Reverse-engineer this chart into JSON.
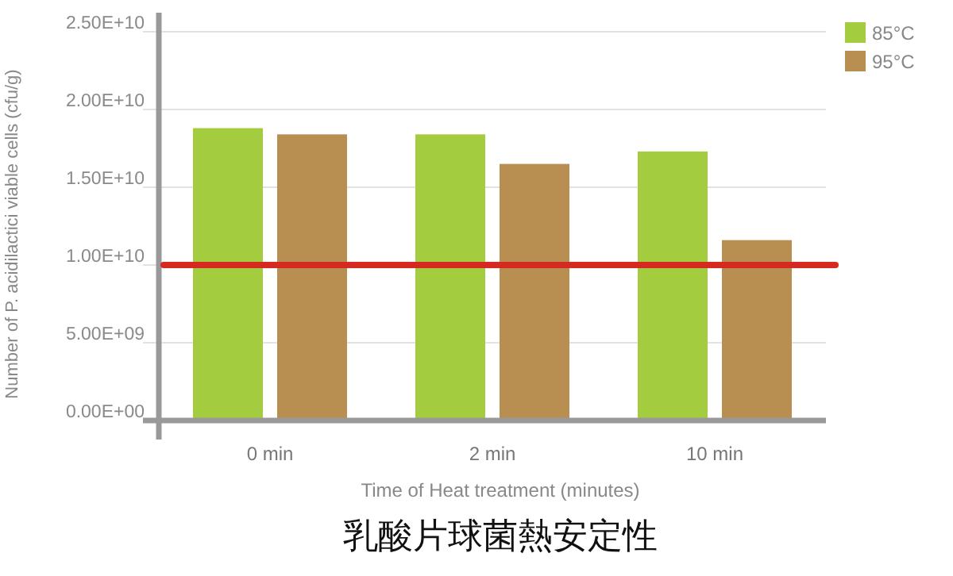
{
  "chart_data": {
    "type": "bar",
    "title": "乳酸片球菌熱安定性",
    "xlabel": "Time of Heat treatment (minutes)",
    "ylabel": "Number of P. acidilactici viable cells (cfu/g)",
    "categories": [
      "0 min",
      "2 min",
      "10 min"
    ],
    "series": [
      {
        "name": "85°C",
        "color": "#a4cc3f",
        "values": [
          18800000000,
          18400000000,
          17300000000
        ]
      },
      {
        "name": "95°C",
        "color": "#b98e51",
        "values": [
          18400000000,
          16500000000,
          11600000000
        ]
      }
    ],
    "ylim": [
      0,
      25000000000
    ],
    "yticks": [
      {
        "value": 0,
        "label": "0.00E+00"
      },
      {
        "value": 5000000000,
        "label": "5.00E+09"
      },
      {
        "value": 10000000000,
        "label": "1.00E+10"
      },
      {
        "value": 15000000000,
        "label": "1.50E+10"
      },
      {
        "value": 20000000000,
        "label": "2.00E+10"
      },
      {
        "value": 25000000000,
        "label": "2.50E+10"
      }
    ],
    "ref_lines": [
      {
        "axis": "y",
        "value": 10000000000,
        "color": "#d42a20"
      }
    ],
    "grid": "y",
    "legend": "top right"
  }
}
